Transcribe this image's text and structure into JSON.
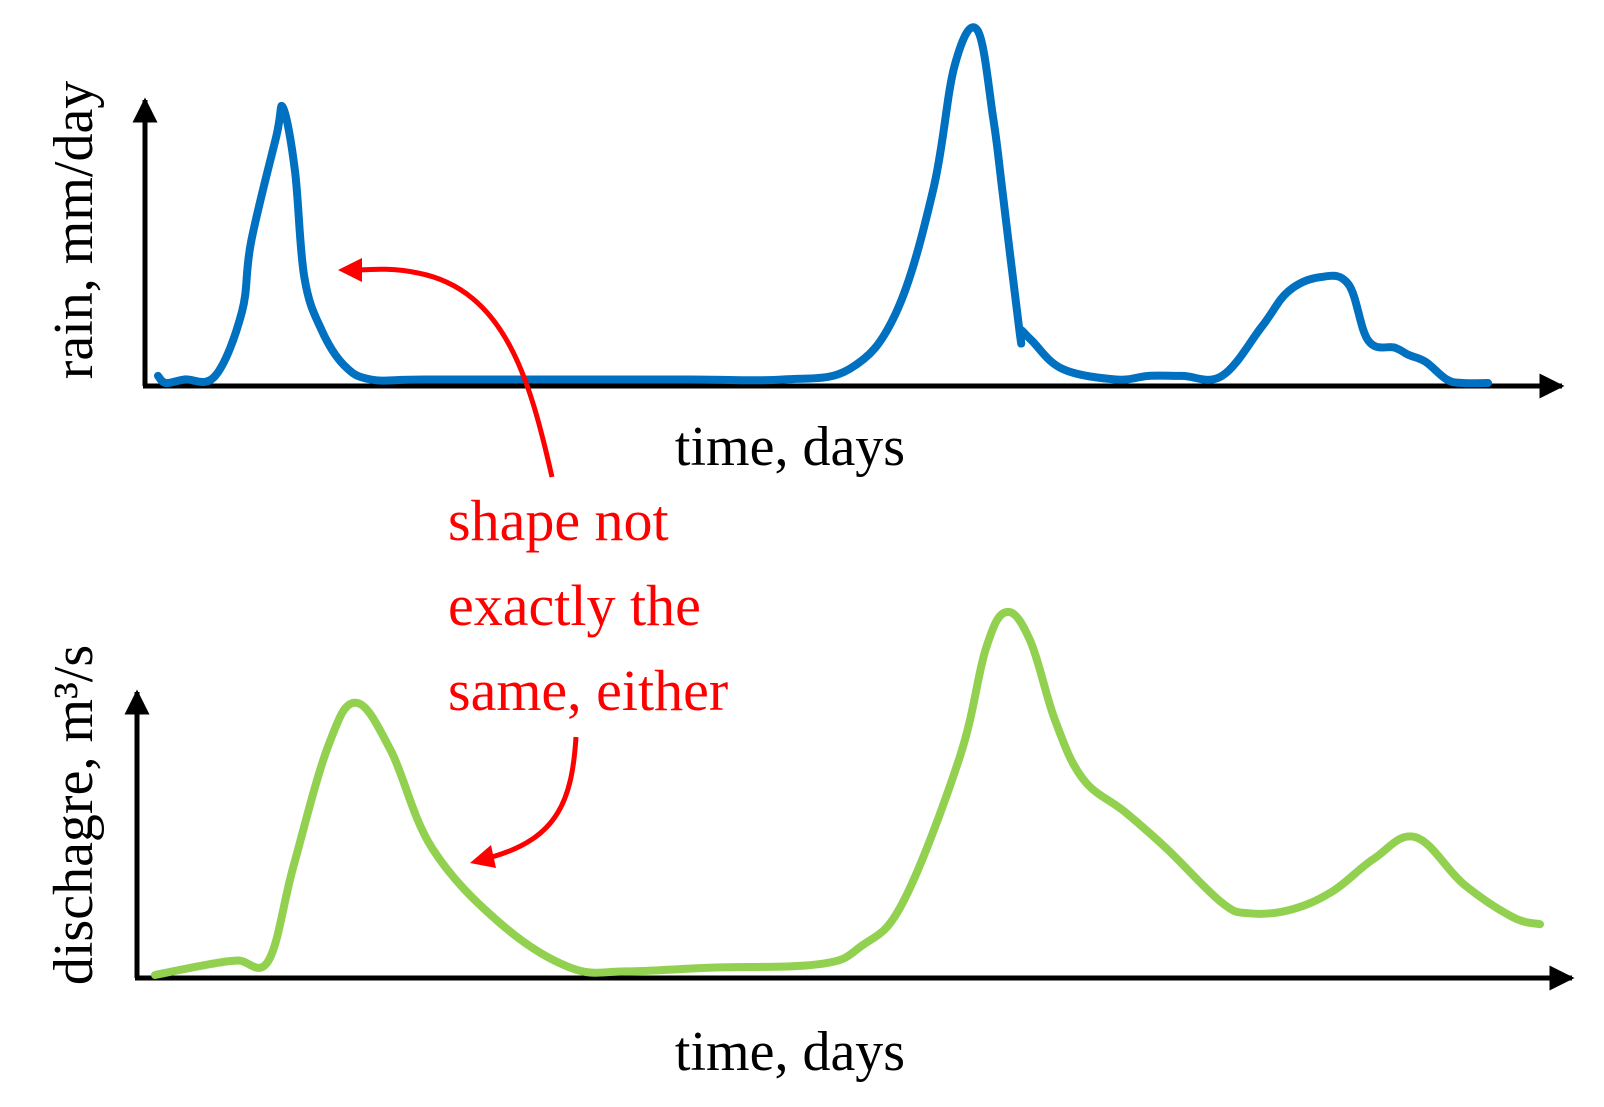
{
  "chart_data": [
    {
      "type": "line",
      "xlabel": "time, days",
      "ylabel": "rain, mm/day",
      "grid": false,
      "xlim": [
        0,
        100
      ],
      "ylim": [
        0,
        100
      ],
      "series": [
        {
          "color": "#0070c0",
          "x": [
            0,
            0.6,
            2,
            4.3,
            6.3,
            7,
            8.9,
            9.4,
            10.3,
            11,
            12.3,
            14,
            16,
            20,
            30,
            40,
            47,
            52,
            55.5,
            58.3,
            59.9,
            61.6,
            62.8,
            63.5,
            64.8,
            64.9,
            65.7,
            68,
            72,
            74.5,
            77,
            80,
            83,
            85,
            87.4,
            89.5,
            91,
            93,
            94,
            95.3,
            96.9,
            98.1,
            100
          ],
          "y": [
            2,
            0,
            1,
            2,
            20,
            40,
            70,
            78,
            60,
            30,
            15,
            5,
            1,
            1,
            1,
            1,
            1,
            4,
            20,
            55,
            90,
            100,
            75,
            54,
            14,
            15,
            12,
            4,
            1,
            2,
            2,
            2,
            16,
            26,
            30,
            28,
            12,
            10,
            8,
            6,
            1,
            0,
            0
          ]
        }
      ]
    },
    {
      "type": "line",
      "xlabel": "time, days",
      "ylabel": "dischagre, m³/s",
      "grid": false,
      "xlim": [
        0,
        100
      ],
      "ylim": [
        0,
        100
      ],
      "series": [
        {
          "color": "#92d050",
          "x": [
            0,
            4,
            6,
            8.2,
            10,
            12.5,
            14.5,
            17,
            20,
            25,
            30,
            34,
            40,
            48,
            51,
            54,
            58.1,
            60,
            61.5,
            63.2,
            65,
            67,
            70,
            73,
            77,
            79,
            82,
            85,
            88,
            91,
            94.5,
            98,
            100
          ],
          "y": [
            0,
            3,
            4,
            4,
            30,
            63,
            75,
            62,
            35,
            14,
            2,
            1,
            2,
            3,
            8,
            20,
            60,
            90,
            100,
            92,
            70,
            54,
            45,
            35,
            20,
            17,
            18,
            23,
            32,
            38,
            25,
            16,
            14
          ]
        }
      ]
    }
  ],
  "annotation": {
    "lines": [
      "shape not",
      "exactly the",
      "same, either"
    ],
    "color": "#ff0000"
  }
}
